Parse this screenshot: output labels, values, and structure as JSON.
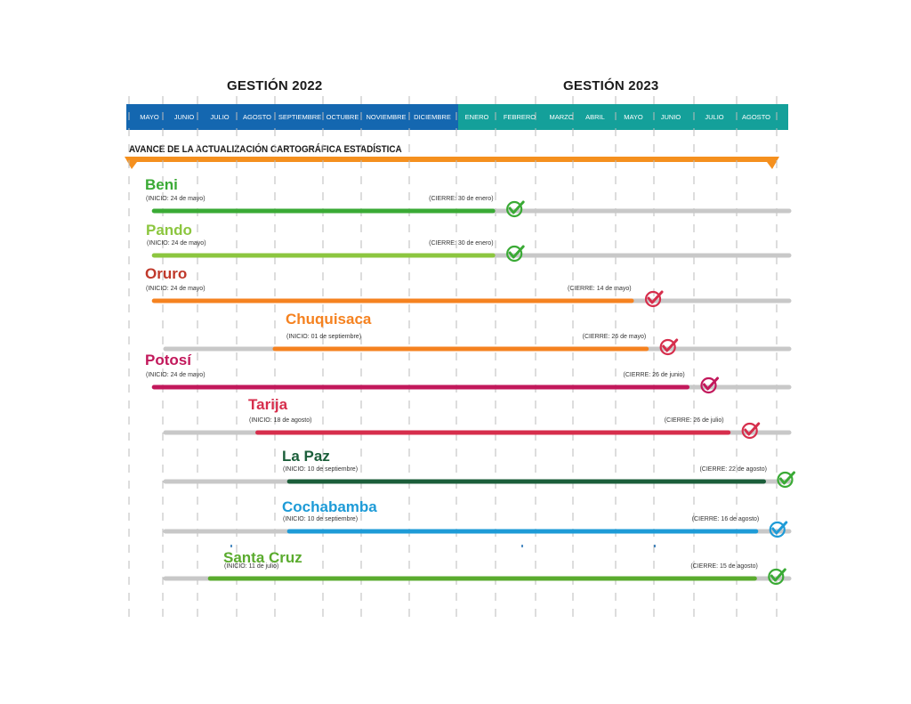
{
  "header": {
    "gestion_2022": "GESTIÓN 2022",
    "gestion_2023": "GESTIÓN 2023",
    "months": [
      "MAYO",
      "JUNIO",
      "JULIO",
      "AGOSTO",
      "SEPTIEMBRE",
      "OCTUBRE",
      "NOVIEMBRE",
      "DICIEMBRE",
      "ENERO",
      "FEBRERO",
      "MARZO",
      "ABRIL",
      "MAYO",
      "JUNIO",
      "JULIO",
      "AGOSTO"
    ]
  },
  "section_title": "AVANCE DE LA ACTUALIZACIÓN CARTOGRÁFICA ESTADÍSTICA",
  "colors": {
    "band_2022": "#1467b0",
    "band_2023": "#14a09a",
    "progress_arrow": "#f5901e",
    "track": "#c8c8c8",
    "grid": "#bbbbbb"
  },
  "chart_data": {
    "type": "gantt",
    "timeline": {
      "start": "2022-05-01",
      "end": "2023-08-31"
    },
    "tasks": [
      {
        "name": "Beni",
        "start": "2022-05-24",
        "end": "2023-01-30",
        "color": "#3aaa35",
        "start_label": "(INICIO: 24 de mayo)",
        "end_label": "(CIERRE: 30 de enero)",
        "icon": "check-green"
      },
      {
        "name": "Pando",
        "start": "2022-05-24",
        "end": "2023-01-30",
        "color": "#8cc63f",
        "start_label": "(INICIO: 24 de mayo)",
        "end_label": "(CIERRE: 30 de enero)",
        "icon": "check-green"
      },
      {
        "name": "Oruro",
        "start": "2022-05-24",
        "end": "2023-05-14",
        "color": "#f58220",
        "name_color": "#c0392b",
        "start_label": "(INICIO: 24 de mayo)",
        "end_label": "(CIERRE: 14 de mayo)",
        "icon": "check-red"
      },
      {
        "name": "Chuquisaca",
        "start": "2022-09-01",
        "end": "2023-05-26",
        "color": "#f58220",
        "start_label": "(INICIO: 01 de septiembre)",
        "end_label": "(CIERRE: 26 de mayo)",
        "icon": "check-red"
      },
      {
        "name": "Potosí",
        "start": "2022-05-24",
        "end": "2023-06-26",
        "color": "#c2185b",
        "start_label": "(INICIO: 24 de mayo)",
        "end_label": "(CIERRE: 26 de junio)",
        "icon": "check-magenta"
      },
      {
        "name": "Tarija",
        "start": "2022-08-18",
        "end": "2023-07-26",
        "color": "#d62e4c",
        "start_label": "(INICIO: 18 de agosto)",
        "end_label": "(CIERRE: 26 de julio)",
        "icon": "check-red"
      },
      {
        "name": "La Paz",
        "start": "2022-09-10",
        "end": "2023-08-22",
        "color": "#1b5e3a",
        "start_label": "(INICIO: 10 de septiembre)",
        "end_label": "(CIERRE: 22 de agosto)",
        "icon": "check-green"
      },
      {
        "name": "Cochabamba",
        "start": "2022-09-10",
        "end": "2023-08-16",
        "color": "#1e9bd7",
        "start_label": "(INICIO: 10 de septiembre)",
        "end_label": "(CIERRE: 16 de agosto)",
        "icon": "check-blue"
      },
      {
        "name": "Santa Cruz",
        "start": "2022-07-11",
        "end": "2023-08-15",
        "color": "#5aab2e",
        "start_label": "(INICIO: 11 de julio)",
        "end_label": "(CIERRE: 15 de agosto)",
        "icon": "check-green"
      }
    ]
  }
}
